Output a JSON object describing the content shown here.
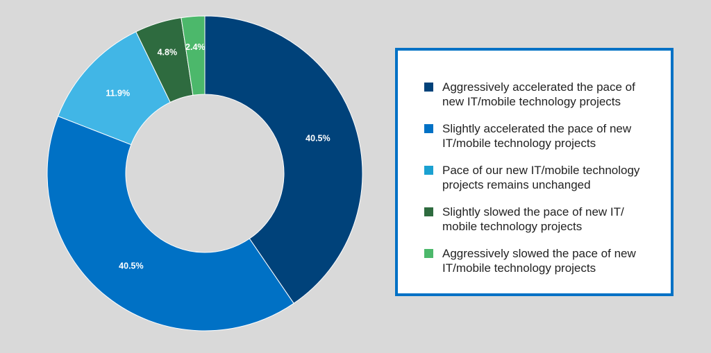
{
  "chart_data": {
    "type": "pie",
    "donut": true,
    "title": "",
    "categories": [
      "Aggressively accelerated the pace of new IT/mobile technology projects",
      "Slightly accelerated the pace of new IT/mobile technology projects",
      "Pace of our new IT/mobile technology projects remains unchanged",
      "Slightly slowed the pace of new IT/ mobile technology projects",
      "Aggressively slowed the pace of new IT/mobile technology projects"
    ],
    "values": [
      40.5,
      40.5,
      11.9,
      4.8,
      2.4
    ],
    "labels": [
      "40.5%",
      "40.5%",
      "11.9%",
      "4.8%",
      "2.4%"
    ],
    "colors": [
      "#00427a",
      "#0071c5",
      "#41b6e6",
      "#2e6b3f",
      "#4cb86b"
    ],
    "legend_placement": "right",
    "legend_colors": [
      "#00427a",
      "#0071c5",
      "#1ba1d1",
      "#2e6b3f",
      "#4cb86b"
    ]
  },
  "legend": {
    "items": [
      {
        "line1": "Aggressively accelerated the pace of",
        "line2": "new IT/mobile technology projects"
      },
      {
        "line1": "Slightly accelerated the pace of new",
        "line2": "IT/mobile technology projects"
      },
      {
        "line1": "Pace of our new IT/mobile technology",
        "line2": "projects remains unchanged"
      },
      {
        "line1": "Slightly slowed the pace of new IT/",
        "line2": "mobile technology projects"
      },
      {
        "line1": "Aggressively slowed the pace of new",
        "line2": "IT/mobile technology projects"
      }
    ]
  }
}
